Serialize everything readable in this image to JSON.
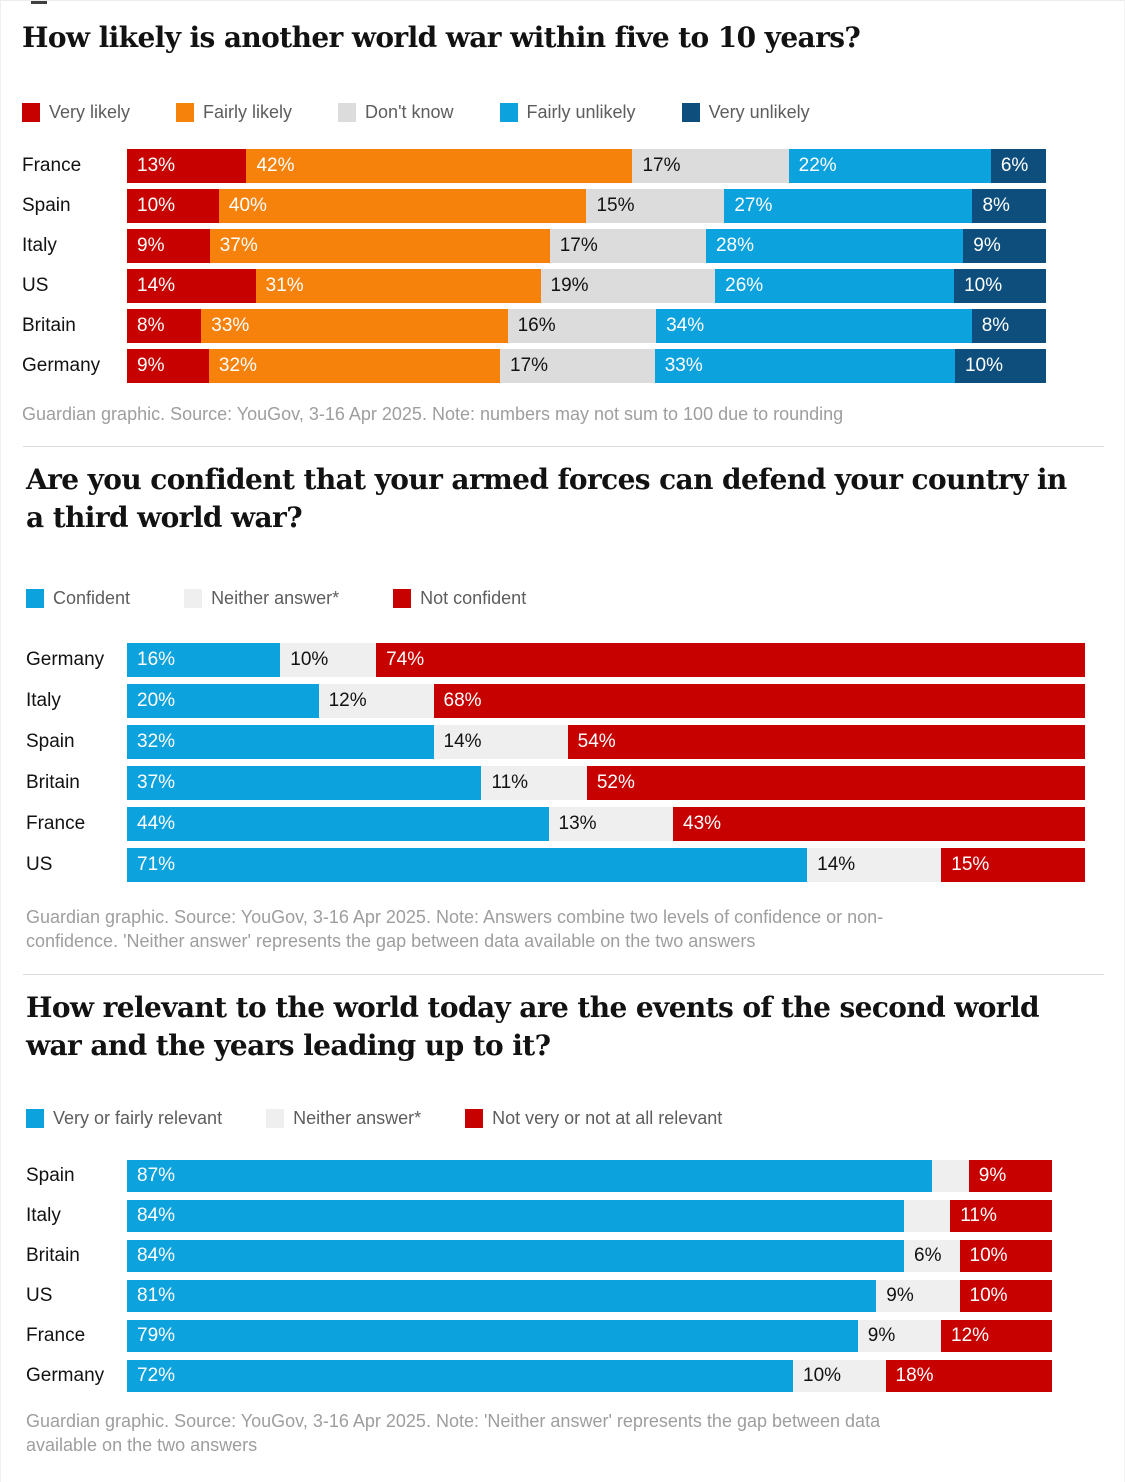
{
  "chart_data": [
    {
      "type": "bar",
      "stacked": true,
      "orientation": "horizontal",
      "title": "How likely is another world war within five to 10 years?",
      "xlim": [
        0,
        100
      ],
      "unit": "%",
      "legend_position": "top",
      "series": [
        {
          "name": "Very likely",
          "color": "#c70000",
          "label_color": "#ffffff"
        },
        {
          "name": "Fairly likely",
          "color": "#f6820c",
          "label_color": "#ffffff"
        },
        {
          "name": "Don't know",
          "color": "#dcdcdc",
          "label_color": "#121212"
        },
        {
          "name": "Fairly unlikely",
          "color": "#0ca2dd",
          "label_color": "#ffffff"
        },
        {
          "name": "Very unlikely",
          "color": "#0d4e7d",
          "label_color": "#ffffff"
        }
      ],
      "rows": [
        {
          "country": "France",
          "values": [
            13,
            42,
            17,
            22,
            6
          ],
          "labels": [
            "13%",
            "42%",
            "17%",
            "22%",
            "6%"
          ]
        },
        {
          "country": "Spain",
          "values": [
            10,
            40,
            15,
            27,
            8
          ],
          "labels": [
            "10%",
            "40%",
            "15%",
            "27%",
            "8%"
          ]
        },
        {
          "country": "Italy",
          "values": [
            9,
            37,
            17,
            28,
            9
          ],
          "labels": [
            "9%",
            "37%",
            "17%",
            "28%",
            "9%"
          ]
        },
        {
          "country": "US",
          "values": [
            14,
            31,
            19,
            26,
            10
          ],
          "labels": [
            "14%",
            "31%",
            "19%",
            "26%",
            "10%"
          ]
        },
        {
          "country": "Britain",
          "values": [
            8,
            33,
            16,
            34,
            8
          ],
          "labels": [
            "8%",
            "33%",
            "16%",
            "34%",
            "8%"
          ]
        },
        {
          "country": "Germany",
          "values": [
            9,
            32,
            17,
            33,
            10
          ],
          "labels": [
            "9%",
            "32%",
            "17%",
            "33%",
            "10%"
          ]
        }
      ],
      "source": "Guardian graphic. Source: YouGov, 3-16 Apr 2025. Note: numbers may not sum to 100 due to rounding"
    },
    {
      "type": "bar",
      "stacked": true,
      "orientation": "horizontal",
      "title": "Are you confident that your armed forces can defend your country in\na third world war?",
      "xlim": [
        0,
        100
      ],
      "unit": "%",
      "legend_position": "top",
      "series": [
        {
          "name": "Confident",
          "color": "#0ca2dd",
          "label_color": "#ffffff"
        },
        {
          "name": "Neither answer*",
          "color": "#efefef",
          "label_color": "#121212"
        },
        {
          "name": "Not confident",
          "color": "#c70000",
          "label_color": "#ffffff"
        }
      ],
      "rows": [
        {
          "country": "Germany",
          "values": [
            16,
            10,
            74
          ],
          "labels": [
            "16%",
            "10%",
            "74%"
          ]
        },
        {
          "country": "Italy",
          "values": [
            20,
            12,
            68
          ],
          "labels": [
            "20%",
            "12%",
            "68%"
          ]
        },
        {
          "country": "Spain",
          "values": [
            32,
            14,
            54
          ],
          "labels": [
            "32%",
            "14%",
            "54%"
          ]
        },
        {
          "country": "Britain",
          "values": [
            37,
            11,
            52
          ],
          "labels": [
            "37%",
            "11%",
            "52%"
          ]
        },
        {
          "country": "France",
          "values": [
            44,
            13,
            43
          ],
          "labels": [
            "44%",
            "13%",
            "43%"
          ]
        },
        {
          "country": "US",
          "values": [
            71,
            14,
            15
          ],
          "labels": [
            "71%",
            "14%",
            "15%"
          ]
        }
      ],
      "source": "Guardian graphic. Source: YouGov, 3-16 Apr 2025. Note: Answers combine two levels of confidence or non-\nconfidence. 'Neither answer' represents the gap between data available on the two answers"
    },
    {
      "type": "bar",
      "stacked": true,
      "orientation": "horizontal",
      "title": "How relevant to the world today are the events of the second world\nwar and the years leading up to it?",
      "xlim": [
        0,
        100
      ],
      "unit": "%",
      "legend_position": "top",
      "series": [
        {
          "name": "Very or fairly relevant",
          "color": "#0ca2dd",
          "label_color": "#ffffff"
        },
        {
          "name": "Neither answer*",
          "color": "#efefef",
          "label_color": "#121212"
        },
        {
          "name": "Not very or not at all relevant",
          "color": "#c70000",
          "label_color": "#ffffff"
        }
      ],
      "rows": [
        {
          "country": "Spain",
          "values": [
            87,
            4,
            9
          ],
          "labels": [
            "87%",
            "",
            "9%"
          ]
        },
        {
          "country": "Italy",
          "values": [
            84,
            5,
            11
          ],
          "labels": [
            "84%",
            "",
            "11%"
          ]
        },
        {
          "country": "Britain",
          "values": [
            84,
            6,
            10
          ],
          "labels": [
            "84%",
            "6%",
            "10%"
          ]
        },
        {
          "country": "US",
          "values": [
            81,
            9,
            10
          ],
          "labels": [
            "81%",
            "9%",
            "10%"
          ]
        },
        {
          "country": "France",
          "values": [
            79,
            9,
            12
          ],
          "labels": [
            "79%",
            "9%",
            "12%"
          ]
        },
        {
          "country": "Germany",
          "values": [
            72,
            10,
            18
          ],
          "labels": [
            "72%",
            "10%",
            "18%"
          ]
        }
      ],
      "source": "Guardian graphic. Source: YouGov, 3-16 Apr 2025. Note: 'Neither answer' represents the gap between data\navailable on the two answers"
    }
  ]
}
